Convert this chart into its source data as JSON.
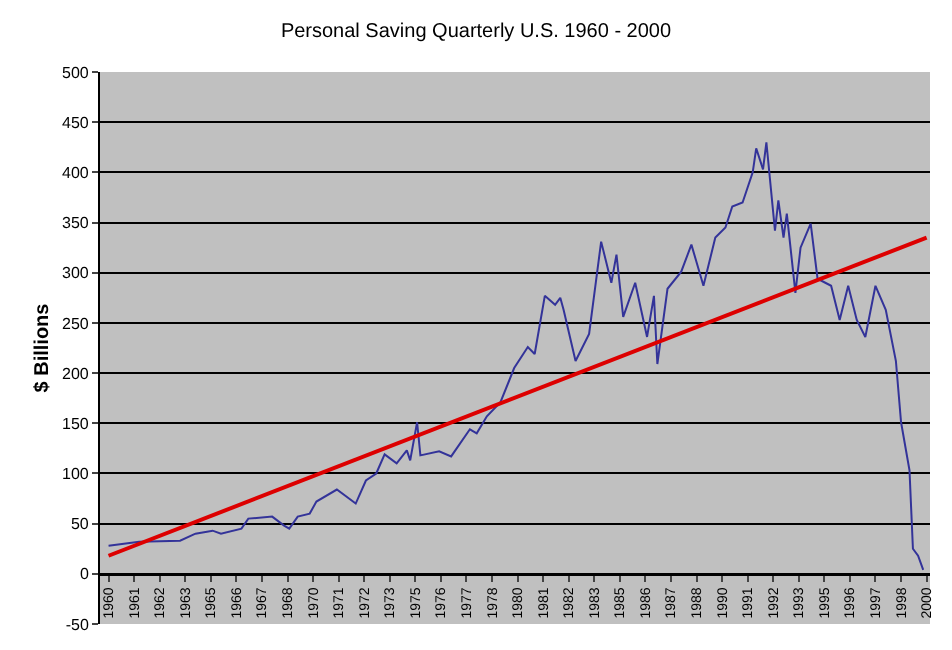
{
  "chart_data": {
    "type": "line",
    "title": "Personal Saving Quarterly U.S. 1960 - 2000",
    "ylabel": "$ Billions",
    "series": [
      {
        "color": "#333399",
        "x": [
          "1960-01",
          "1961-07",
          "1963-07",
          "1964-04",
          "1965-02",
          "1965-07",
          "1966-07",
          "1966-11",
          "1968-01",
          "1968-08",
          "1968-11",
          "1969-04",
          "1969-11",
          "1970-03",
          "1971-03",
          "1972-02",
          "1972-08",
          "1973-02",
          "1973-07",
          "1974-02",
          "1974-08",
          "1974-10",
          "1975-02",
          "1975-04",
          "1976-03",
          "1976-10",
          "1977-09",
          "1978-01",
          "1978-07",
          "1979-03",
          "1979-11",
          "1980-07",
          "1980-11",
          "1981-05",
          "1981-11",
          "1982-02",
          "1982-04",
          "1982-11",
          "1983-07",
          "1984-02",
          "1984-08",
          "1984-11",
          "1985-03",
          "1985-10",
          "1986-05",
          "1986-09",
          "1986-11",
          "1987-05",
          "1988-01",
          "1988-07",
          "1989-02",
          "1989-09",
          "1990-03",
          "1990-07",
          "1991-01",
          "1991-07",
          "1991-09",
          "1992-01",
          "1992-03",
          "1992-08",
          "1992-10",
          "1993-01",
          "1993-03",
          "1993-08",
          "1993-11",
          "1994-05",
          "1994-09",
          "1995-05",
          "1995-10",
          "1996-03",
          "1996-08",
          "1997-01",
          "1997-07",
          "1998-01",
          "1998-07",
          "1998-10",
          "1999-03",
          "1999-05",
          "1999-08",
          "1999-11"
        ],
        "values": [
          28,
          32,
          33,
          40,
          43,
          40,
          45,
          55,
          57,
          48,
          45,
          57,
          60,
          72,
          84,
          70,
          93,
          100,
          119,
          110,
          123,
          113,
          151,
          118,
          122,
          117,
          144,
          140,
          157,
          171,
          205,
          226,
          219,
          277,
          268,
          275,
          263,
          212,
          239,
          331,
          290,
          318,
          256,
          290,
          236,
          277,
          209,
          284,
          301,
          328,
          287,
          335,
          345,
          366,
          370,
          400,
          424,
          403,
          430,
          342,
          372,
          335,
          359,
          280,
          325,
          349,
          294,
          287,
          253,
          287,
          253,
          236,
          287,
          263,
          212,
          151,
          103,
          25,
          18,
          4
        ]
      },
      {
        "color": "#dd0000",
        "x": [
          "1960-01",
          "2000-01"
        ],
        "values": [
          18,
          335
        ]
      }
    ],
    "xlim": [
      "1959-08",
      "2000-03"
    ],
    "xticks": [
      {
        "value": "1960-01",
        "label": "1960"
      },
      {
        "value": "1961-04",
        "label": "1961"
      },
      {
        "value": "1962-07",
        "label": "1962"
      },
      {
        "value": "1963-10",
        "label": "1963"
      },
      {
        "value": "1965-01",
        "label": "1965"
      },
      {
        "value": "1966-04",
        "label": "1966"
      },
      {
        "value": "1967-07",
        "label": "1967"
      },
      {
        "value": "1968-10",
        "label": "1968"
      },
      {
        "value": "1970-01",
        "label": "1970"
      },
      {
        "value": "1971-04",
        "label": "1971"
      },
      {
        "value": "1972-07",
        "label": "1972"
      },
      {
        "value": "1973-10",
        "label": "1973"
      },
      {
        "value": "1975-01",
        "label": "1975"
      },
      {
        "value": "1976-04",
        "label": "1976"
      },
      {
        "value": "1977-07",
        "label": "1977"
      },
      {
        "value": "1978-10",
        "label": "1978"
      },
      {
        "value": "1980-01",
        "label": "1980"
      },
      {
        "value": "1981-04",
        "label": "1981"
      },
      {
        "value": "1982-07",
        "label": "1982"
      },
      {
        "value": "1983-10",
        "label": "1983"
      },
      {
        "value": "1985-01",
        "label": "1985"
      },
      {
        "value": "1986-04",
        "label": "1986"
      },
      {
        "value": "1987-07",
        "label": "1987"
      },
      {
        "value": "1988-10",
        "label": "1988"
      },
      {
        "value": "1990-01",
        "label": "1990"
      },
      {
        "value": "1991-04",
        "label": "1991"
      },
      {
        "value": "1992-07",
        "label": "1992"
      },
      {
        "value": "1993-10",
        "label": "1993"
      },
      {
        "value": "1995-01",
        "label": "1995"
      },
      {
        "value": "1996-04",
        "label": "1996"
      },
      {
        "value": "1997-07",
        "label": "1997"
      },
      {
        "value": "1998-10",
        "label": "1998"
      },
      {
        "value": "2000-01",
        "label": "2000"
      }
    ],
    "ylim": [
      -50,
      500
    ],
    "yticks": [
      -50,
      0,
      50,
      100,
      150,
      200,
      250,
      300,
      350,
      400,
      450,
      500
    ],
    "grid": "y",
    "marker": "none",
    "line_style": "solid"
  }
}
